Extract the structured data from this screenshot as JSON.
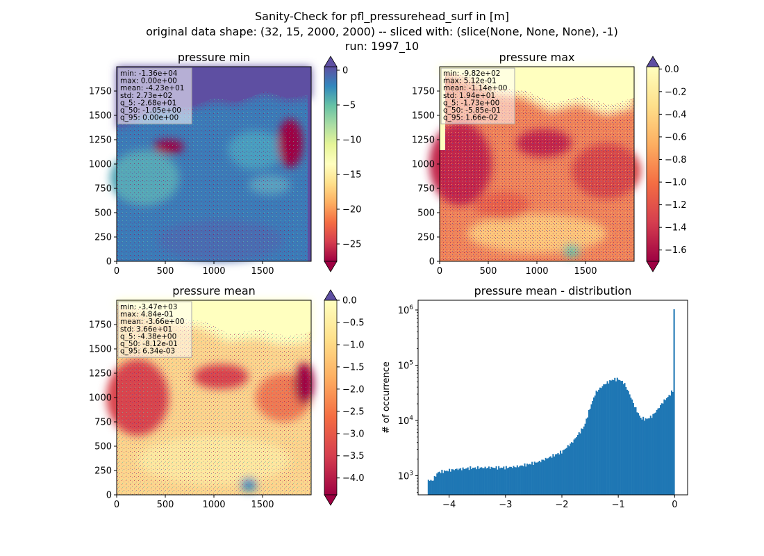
{
  "figure": {
    "title_lines": [
      "Sanity-Check for pfl_pressurehead_surf in [m]",
      "original data shape: (32, 15, 2000, 2000) -- sliced with: (slice(None, None, None), -1)",
      "run: 1997_10"
    ]
  },
  "chart_data": [
    {
      "type": "heatmap",
      "title": "pressure min",
      "xlim": [
        0,
        2000
      ],
      "ylim": [
        0,
        2000
      ],
      "xticks": [
        0,
        500,
        1000,
        1500
      ],
      "yticks": [
        0,
        250,
        500,
        750,
        1000,
        1250,
        1500,
        1750
      ],
      "colormap": "Spectral",
      "colorbar": {
        "range": [
          -27.5,
          0.5
        ],
        "ticks": [
          0,
          -5,
          -10,
          -15,
          -20,
          -25
        ],
        "tick_labels": [
          "0",
          "−5",
          "−10",
          "−15",
          "−20",
          "−25"
        ],
        "extend": "both"
      },
      "stats": [
        "min: -1.36e+04",
        "max: 0.00e+00",
        "mean: -4.23e+01",
        "std: 2.73e+02",
        "q_5: -2.68e+01",
        "q_50: -1.05e+00",
        "q_95: 0.00e+00"
      ],
      "legend_position": "top-left"
    },
    {
      "type": "heatmap",
      "title": "pressure max",
      "xlim": [
        0,
        2000
      ],
      "ylim": [
        0,
        2000
      ],
      "xticks": [
        0,
        500,
        1000,
        1500
      ],
      "yticks": [
        0,
        250,
        500,
        750,
        1000,
        1250,
        1500,
        1750
      ],
      "colormap": "Spectral",
      "colorbar": {
        "range": [
          -1.7,
          0.02
        ],
        "ticks": [
          0.0,
          -0.2,
          -0.4,
          -0.6,
          -0.8,
          -1.0,
          -1.2,
          -1.4,
          -1.6
        ],
        "tick_labels": [
          "0.0",
          "−0.2",
          "−0.4",
          "−0.6",
          "−0.8",
          "−1.0",
          "−1.2",
          "−1.4",
          "−1.6"
        ],
        "extend": "both"
      },
      "stats": [
        "min: -9.82e+02",
        "max: 5.12e-01",
        "mean: -1.14e+00",
        "std: 1.94e+01",
        "q_5: -1.73e+00",
        "q_50: -5.85e-01",
        "q_95: 1.66e-02"
      ],
      "legend_position": "top-left"
    },
    {
      "type": "heatmap",
      "title": "pressure mean",
      "xlim": [
        0,
        2000
      ],
      "ylim": [
        0,
        2000
      ],
      "xticks": [
        0,
        500,
        1000,
        1500
      ],
      "yticks": [
        0,
        250,
        500,
        750,
        1000,
        1250,
        1500,
        1750
      ],
      "colormap": "Spectral",
      "colorbar": {
        "range": [
          -4.38,
          0.0
        ],
        "ticks": [
          0.0,
          -0.5,
          -1.0,
          -1.5,
          -2.0,
          -2.5,
          -3.0,
          -3.5,
          -4.0
        ],
        "tick_labels": [
          "0.0",
          "−0.5",
          "−1.0",
          "−1.5",
          "−2.0",
          "−2.5",
          "−3.0",
          "−3.5",
          "−4.0"
        ],
        "extend": "both"
      },
      "stats": [
        "min: -3.47e+03",
        "max: 4.84e-01",
        "mean: -3.66e+00",
        "std: 3.66e+01",
        "q_5: -4.38e+00",
        "q_50: -8.12e-01",
        "q_95: 6.34e-03"
      ],
      "legend_position": "top-left"
    },
    {
      "type": "bar",
      "title": "pressure mean - distribution",
      "ylabel": "# of occurrence",
      "xlim": [
        -4.55,
        0.23
      ],
      "ylim": [
        450,
        1500000
      ],
      "yscale": "log",
      "xticks": [
        -4,
        -3,
        -2,
        -1,
        0
      ],
      "xtick_labels": [
        "−4",
        "−3",
        "−2",
        "−1",
        "0"
      ],
      "ytick_exponents": [
        3,
        4,
        5,
        6
      ],
      "color": "#1f77b4",
      "bin_range": [
        -4.38,
        0.0
      ],
      "bin_counts": 200,
      "profile": [
        [
          -4.38,
          850
        ],
        [
          -4.3,
          800
        ],
        [
          -4.2,
          1150
        ],
        [
          -4.1,
          1200
        ],
        [
          -3.9,
          1300
        ],
        [
          -3.6,
          1380
        ],
        [
          -3.3,
          1400
        ],
        [
          -3.0,
          1400
        ],
        [
          -2.8,
          1460
        ],
        [
          -2.6,
          1600
        ],
        [
          -2.4,
          1800
        ],
        [
          -2.2,
          2200
        ],
        [
          -2.0,
          2700
        ],
        [
          -1.8,
          4200
        ],
        [
          -1.6,
          8000
        ],
        [
          -1.5,
          17000
        ],
        [
          -1.4,
          32000
        ],
        [
          -1.25,
          45000
        ],
        [
          -1.1,
          55000
        ],
        [
          -1.0,
          56000
        ],
        [
          -0.9,
          48000
        ],
        [
          -0.8,
          30000
        ],
        [
          -0.7,
          17000
        ],
        [
          -0.6,
          11000
        ],
        [
          -0.5,
          10500
        ],
        [
          -0.4,
          12000
        ],
        [
          -0.3,
          16000
        ],
        [
          -0.2,
          22000
        ],
        [
          -0.1,
          28000
        ],
        [
          -0.03,
          35000
        ],
        [
          0.0,
          1030000
        ]
      ]
    }
  ],
  "colors": {
    "spectral": [
      "#5e4fa2",
      "#3288bd",
      "#66c2a5",
      "#abdda4",
      "#e6f598",
      "#ffffbf",
      "#fee08b",
      "#fdae61",
      "#f46d43",
      "#d53e4f",
      "#9e0142"
    ],
    "bars": "#1f77b4"
  }
}
